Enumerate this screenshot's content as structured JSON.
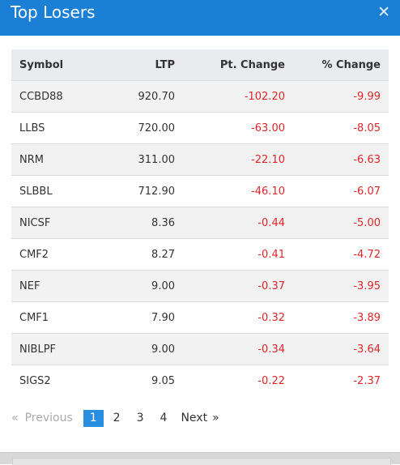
{
  "modal": {
    "title": "Top Losers",
    "close_glyph": "✕"
  },
  "table": {
    "headers": [
      "Symbol",
      "LTP",
      "Pt. Change",
      "% Change"
    ],
    "rows": [
      {
        "symbol": "CCBD88",
        "ltp": "920.70",
        "pt_change": "-102.20",
        "pct_change": "-9.99"
      },
      {
        "symbol": "LLBS",
        "ltp": "720.00",
        "pt_change": "-63.00",
        "pct_change": "-8.05"
      },
      {
        "symbol": "NRM",
        "ltp": "311.00",
        "pt_change": "-22.10",
        "pct_change": "-6.63"
      },
      {
        "symbol": "SLBBL",
        "ltp": "712.90",
        "pt_change": "-46.10",
        "pct_change": "-6.07"
      },
      {
        "symbol": "NICSF",
        "ltp": "8.36",
        "pt_change": "-0.44",
        "pct_change": "-5.00"
      },
      {
        "symbol": "CMF2",
        "ltp": "8.27",
        "pt_change": "-0.41",
        "pct_change": "-4.72"
      },
      {
        "symbol": "NEF",
        "ltp": "9.00",
        "pt_change": "-0.37",
        "pct_change": "-3.95"
      },
      {
        "symbol": "CMF1",
        "ltp": "7.90",
        "pt_change": "-0.32",
        "pct_change": "-3.89"
      },
      {
        "symbol": "NIBLPF",
        "ltp": "9.00",
        "pt_change": "-0.34",
        "pct_change": "-3.64"
      },
      {
        "symbol": "SIGS2",
        "ltp": "9.05",
        "pt_change": "-0.22",
        "pct_change": "-2.37"
      }
    ]
  },
  "pagination": {
    "prev_arrow": "«",
    "previous": "Previous",
    "pages": [
      "1",
      "2",
      "3",
      "4"
    ],
    "active_page": "1",
    "next": "Next",
    "next_arrow": "»"
  },
  "colors": {
    "header": "#1b7fd6",
    "negative": "#e0262a",
    "active_page": "#2a8ee0"
  }
}
